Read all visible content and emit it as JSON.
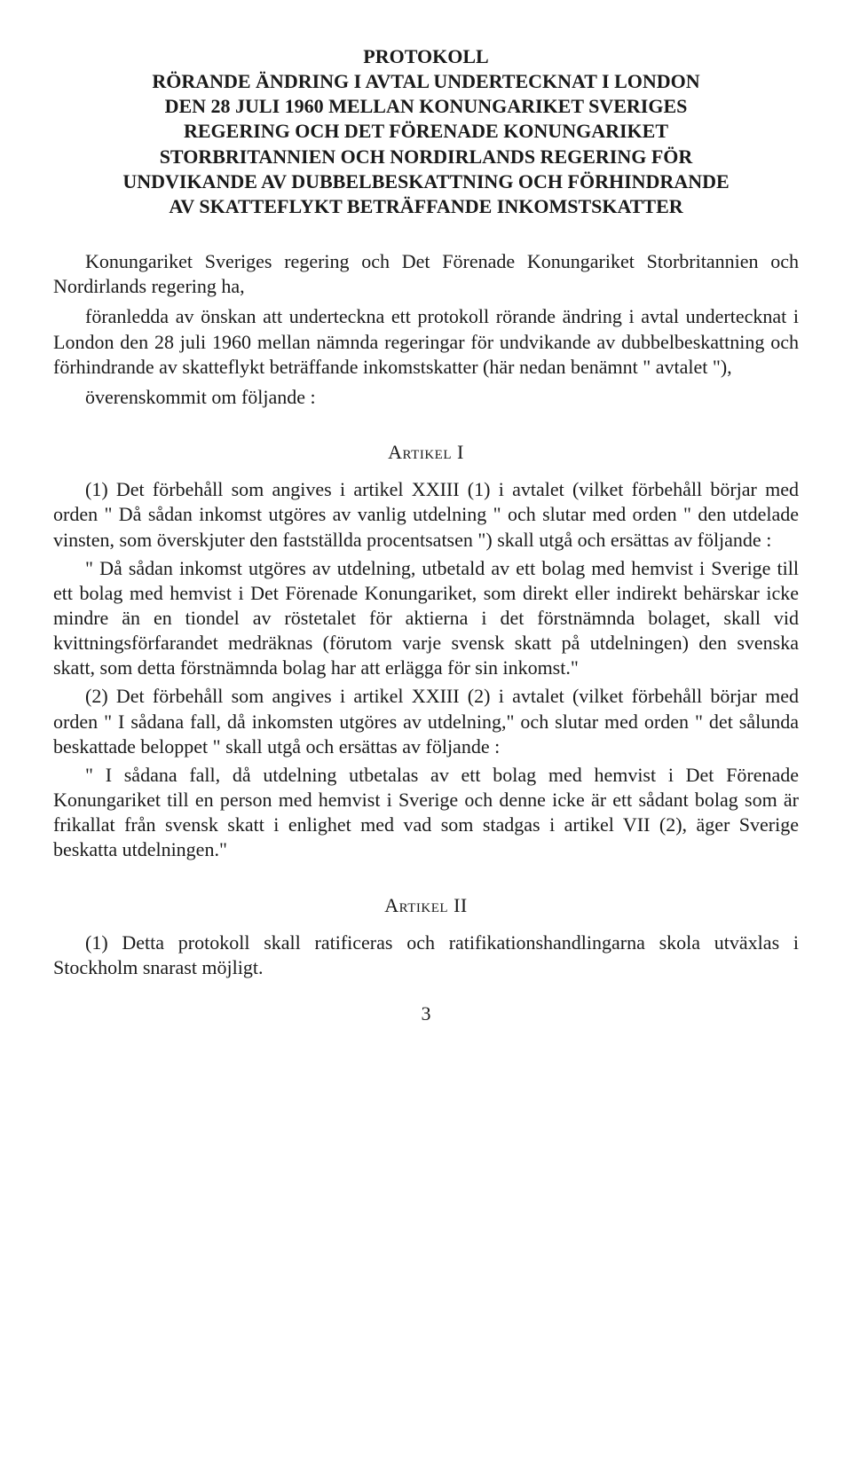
{
  "title": {
    "l1": "PROTOKOLL",
    "l2": "RÖRANDE ÄNDRING I AVTAL UNDERTECKNAT I LONDON",
    "l3": "DEN 28 JULI 1960 MELLAN KONUNGARIKET SVERIGES",
    "l4": "REGERING OCH DET FÖRENADE KONUNGARIKET",
    "l5": "STORBRITANNIEN OCH NORDIRLANDS REGERING FÖR",
    "l6": "UNDVIKANDE AV DUBBELBESKATTNING OCH FÖRHINDRANDE",
    "l7": "AV SKATTEFLYKT BETRÄFFANDE INKOMSTSKATTER"
  },
  "preamble": {
    "p1": "Konungariket Sveriges regering och Det Förenade Konungariket Storbritannien och Nordirlands regering ha,",
    "p2": "föranledda av önskan att underteckna ett protokoll rörande ändring i avtal undertecknat i London den 28 juli 1960 mellan nämnda regeringar för undvikande av dubbelbeskattning och förhindrande av skatteflykt beträffande inkomstskatter (här nedan benämnt \" avtalet \"),",
    "p3": "överenskommit om följande :"
  },
  "article1": {
    "heading": "Artikel I",
    "p1": "(1) Det förbehåll som angives i artikel XXIII (1) i avtalet (vilket förbehåll börjar med orden \" Då sådan inkomst utgöres av vanlig utdelning \" och slutar med orden \" den utdelade vinsten, som överskjuter den fastställda procentsatsen \") skall utgå och ersättas av följande :",
    "p2": "\" Då sådan inkomst utgöres av utdelning, utbetald av ett bolag med hemvist i Sverige till ett bolag med hemvist i Det Förenade Konungariket, som direkt eller indirekt behärskar icke mindre än en tiondel av röstetalet för aktierna i det förstnämnda bolaget, skall vid kvittningsförfarandet medräknas (förutom varje svensk skatt på utdelningen) den svenska skatt, som detta förstnämnda bolag har att erlägga för sin inkomst.\"",
    "p3": "(2) Det förbehåll som angives i artikel XXIII (2) i avtalet (vilket förbehåll börjar med orden \" I sådana fall, då inkomsten utgöres av utdelning,\" och slutar med orden \" det sålunda beskattade beloppet \" skall utgå och ersättas av följande :",
    "p4": "\" I sådana fall, då utdelning utbetalas av ett bolag med hemvist i Det Förenade Konungariket till en person med hemvist i Sverige och denne icke är ett sådant bolag som är frikallat från svensk skatt i enlighet med vad som stadgas i artikel VII (2), äger Sverige beskatta utdelningen.\""
  },
  "article2": {
    "heading": "Artikel II",
    "p1": "(1) Detta protokoll skall ratificeras och ratifikationshandlingarna skola utväxlas i Stockholm snarast möjligt."
  },
  "pageNumber": "3"
}
